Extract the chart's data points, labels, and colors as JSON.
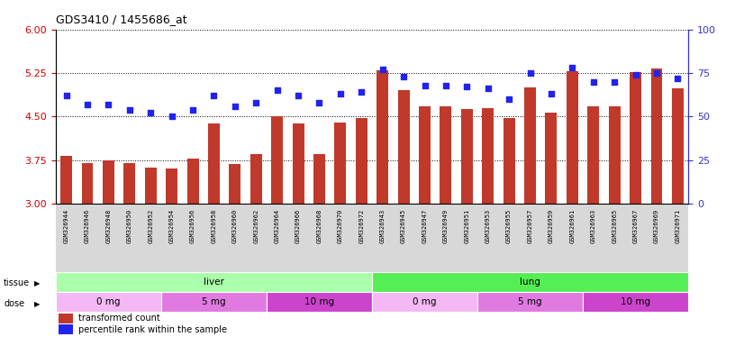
{
  "title": "GDS3410 / 1455686_at",
  "samples": [
    "GSM326944",
    "GSM326946",
    "GSM326948",
    "GSM326950",
    "GSM326952",
    "GSM326954",
    "GSM326956",
    "GSM326958",
    "GSM326960",
    "GSM326962",
    "GSM326964",
    "GSM326966",
    "GSM326968",
    "GSM326970",
    "GSM326972",
    "GSM326943",
    "GSM326945",
    "GSM326947",
    "GSM326949",
    "GSM326951",
    "GSM326953",
    "GSM326955",
    "GSM326957",
    "GSM326959",
    "GSM326961",
    "GSM326963",
    "GSM326965",
    "GSM326967",
    "GSM326969",
    "GSM326971"
  ],
  "transformed_count": [
    3.82,
    3.7,
    3.75,
    3.7,
    3.62,
    3.61,
    3.78,
    4.38,
    3.68,
    3.86,
    4.5,
    4.38,
    3.85,
    4.4,
    4.47,
    5.3,
    4.95,
    4.67,
    4.68,
    4.63,
    4.65,
    4.48,
    5.0,
    4.57,
    5.28,
    4.68,
    4.68,
    5.27,
    5.32,
    4.98
  ],
  "percentile_rank": [
    62,
    57,
    57,
    54,
    52,
    50,
    54,
    62,
    56,
    58,
    65,
    62,
    58,
    63,
    64,
    77,
    73,
    68,
    68,
    67,
    66,
    60,
    75,
    63,
    78,
    70,
    70,
    74,
    75,
    72
  ],
  "ylim_left": [
    3.0,
    6.0
  ],
  "ylim_right": [
    0,
    100
  ],
  "yticks_left": [
    3.0,
    3.75,
    4.5,
    5.25,
    6.0
  ],
  "yticks_right": [
    0,
    25,
    50,
    75,
    100
  ],
  "bar_color": "#c0392b",
  "dot_color": "#2222ee",
  "tissue_liver_color": "#aaffaa",
  "tissue_lung_color": "#55ee55",
  "dose_colors": {
    "0 mg": "#f4b8f4",
    "5 mg": "#e07ae0",
    "10 mg": "#cc44cc"
  },
  "tissue_groups": [
    {
      "label": "liver",
      "start": 0,
      "end": 15
    },
    {
      "label": "lung",
      "start": 15,
      "end": 30
    }
  ],
  "dose_groups": [
    {
      "label": "0 mg",
      "start": 0,
      "end": 5
    },
    {
      "label": "5 mg",
      "start": 5,
      "end": 10
    },
    {
      "label": "10 mg",
      "start": 10,
      "end": 15
    },
    {
      "label": "0 mg",
      "start": 15,
      "end": 20
    },
    {
      "label": "5 mg",
      "start": 20,
      "end": 25
    },
    {
      "label": "10 mg",
      "start": 25,
      "end": 30
    }
  ],
  "legend_bar_label": "transformed count",
  "legend_dot_label": "percentile rank within the sample",
  "axis_left_color": "#cc0000",
  "axis_right_color": "#3333cc",
  "xticklabel_bg": "#d8d8d8",
  "bar_bottom": 3.0
}
